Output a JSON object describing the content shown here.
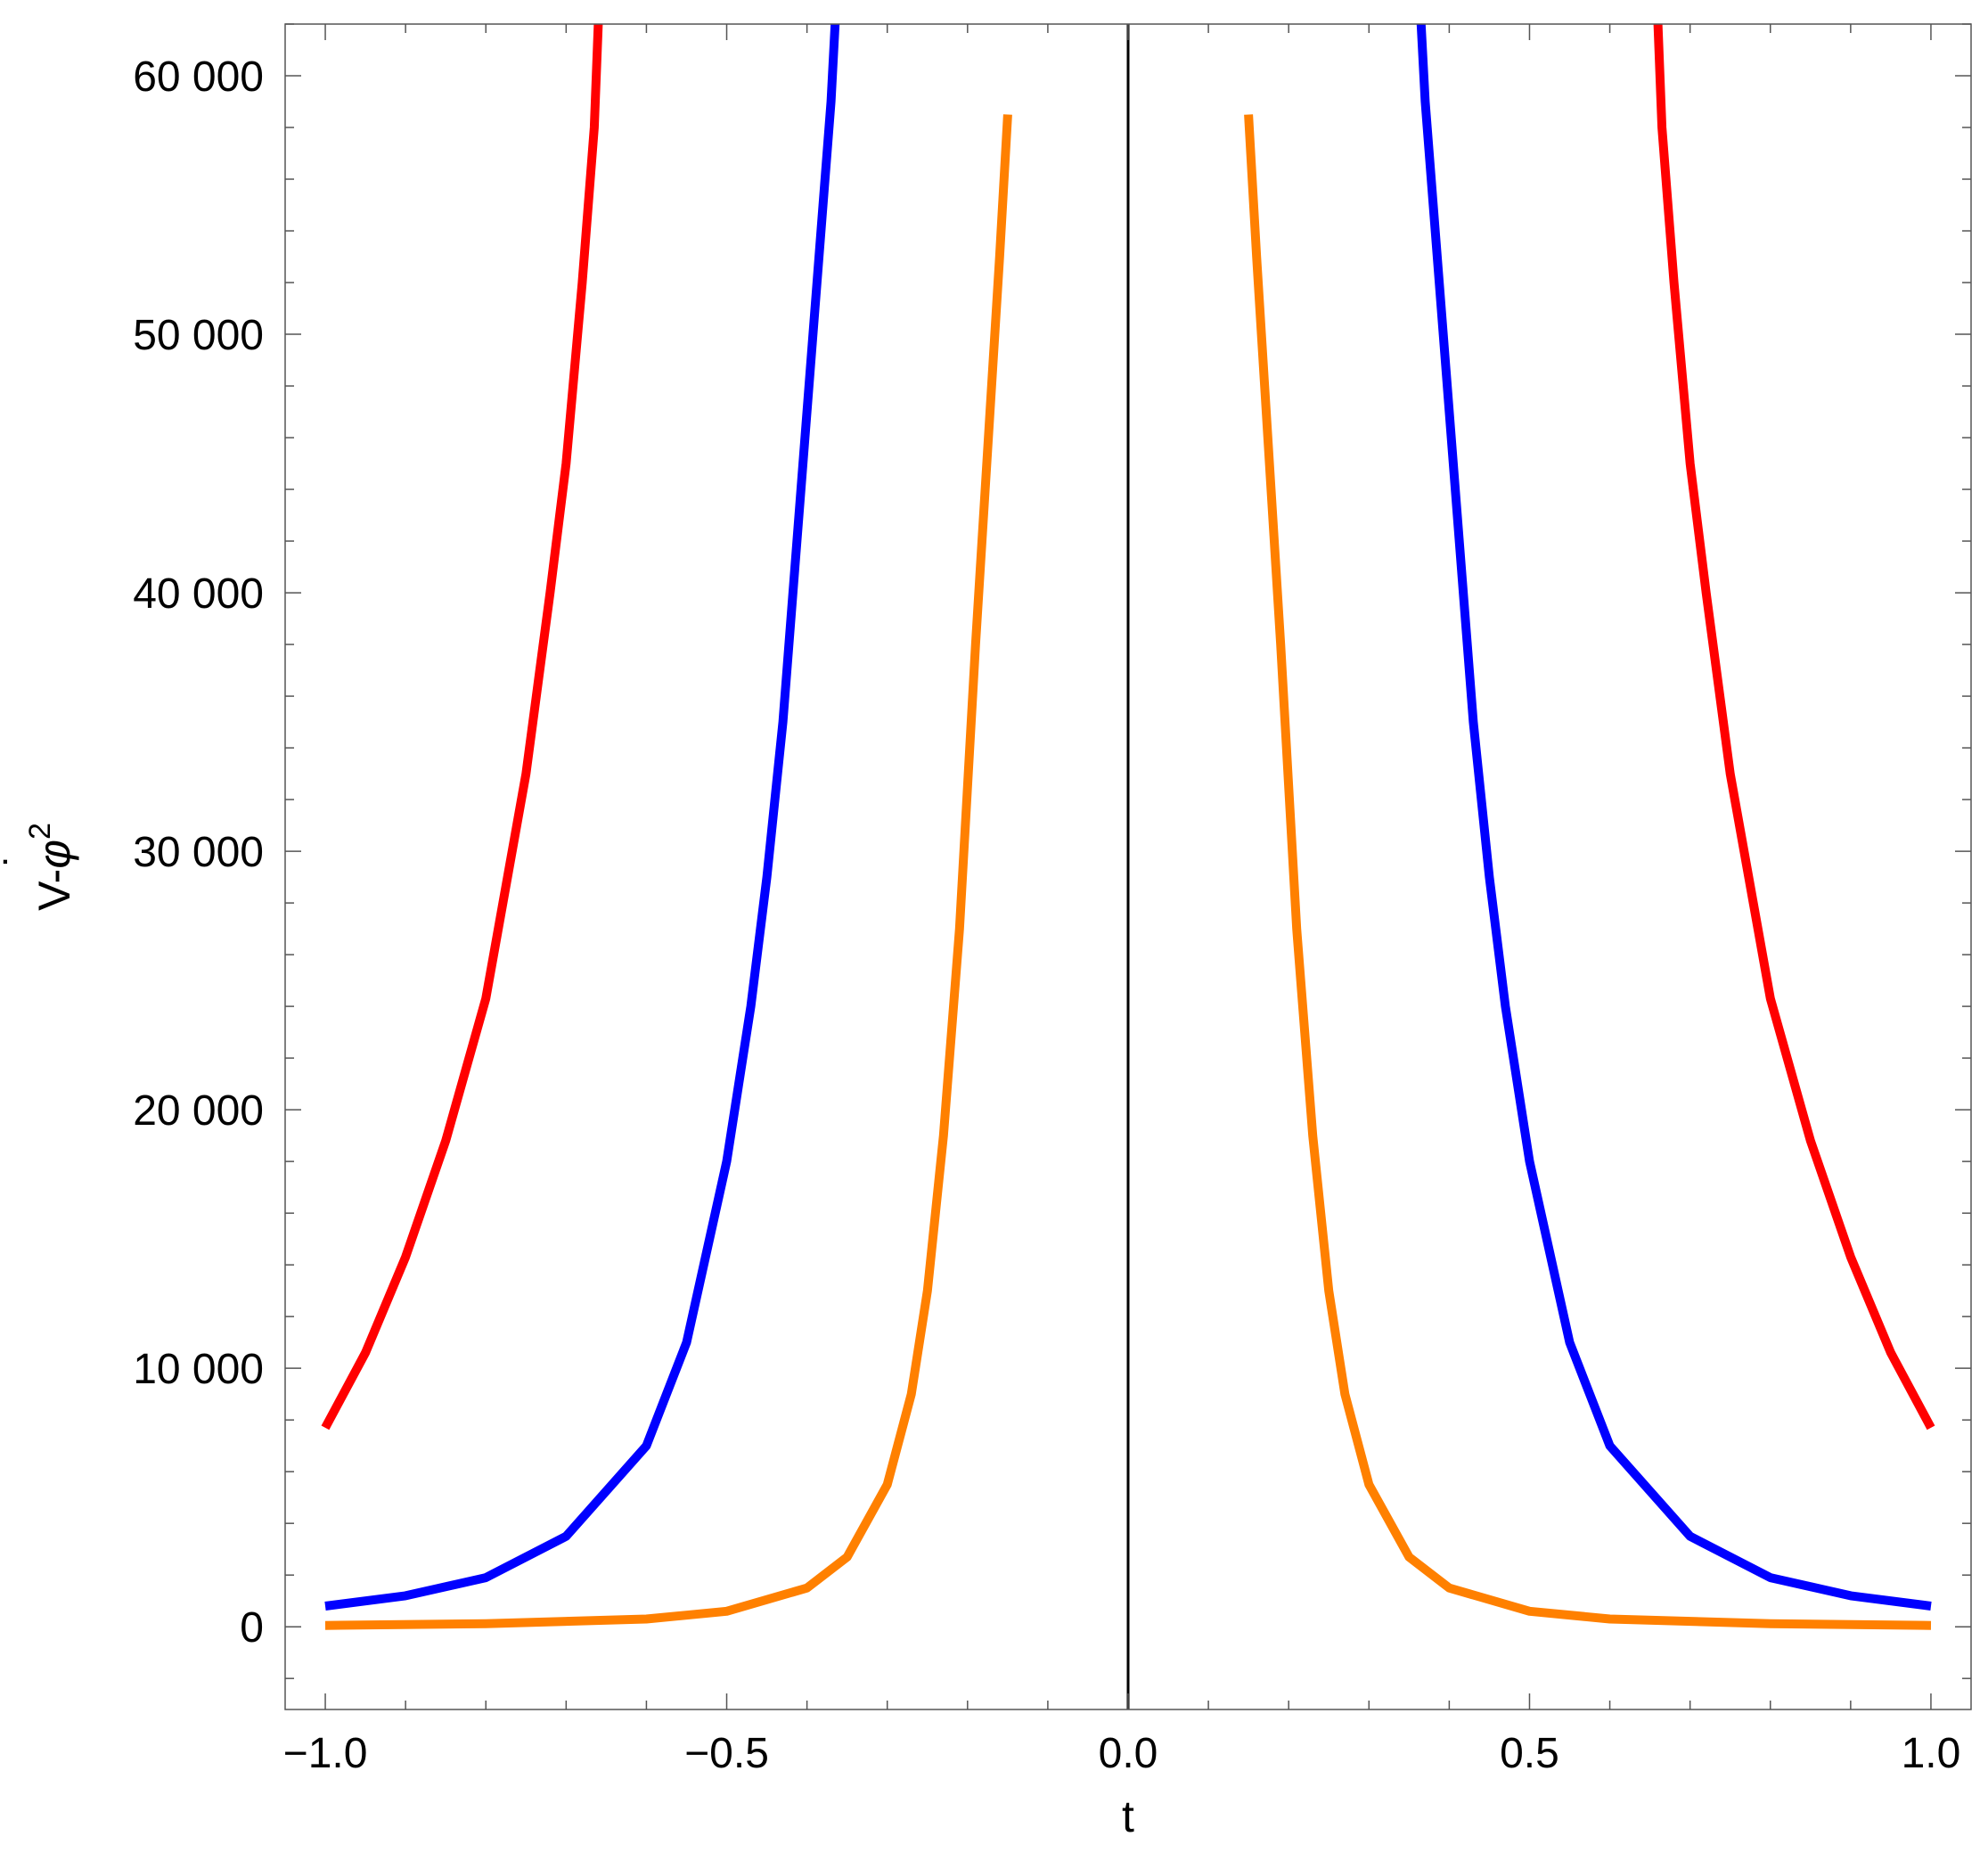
{
  "chart_data": {
    "type": "line",
    "xlabel": "t",
    "ylabel": {
      "base": "V-",
      "symbol": "φ",
      "dot": "˙",
      "exponent": "2"
    },
    "xlim": [
      -1.05,
      1.05
    ],
    "ylim": [
      -3200,
      62000
    ],
    "xticks": [
      -1.0,
      -0.5,
      0.0,
      0.5,
      1.0
    ],
    "xtick_labels": [
      "−1.0",
      "−0.5",
      "0.0",
      "0.5",
      "1.0"
    ],
    "yticks": [
      0,
      10000,
      20000,
      30000,
      40000,
      50000,
      60000
    ],
    "ytick_labels": [
      "0",
      "10 000",
      "20 000",
      "30 000",
      "40 000",
      "50 000",
      "60 000"
    ],
    "x_minor_step": 0.1,
    "y_minor_step": 2000,
    "grid": false,
    "legend": "none",
    "series": [
      {
        "color": "#ff0000",
        "x": [
          -1.0,
          -0.95,
          -0.9,
          -0.85,
          -0.8,
          -0.75,
          -0.72,
          -0.7,
          -0.68,
          -0.665,
          -0.66,
          0.66,
          0.665,
          0.68,
          0.7,
          0.72,
          0.75,
          0.8,
          0.85,
          0.9,
          0.95,
          1.0
        ],
        "y": [
          7700,
          10600,
          14300,
          18800,
          24300,
          33000,
          40000,
          45000,
          52000,
          58000,
          62000,
          62000,
          58000,
          52000,
          45000,
          40000,
          33000,
          24300,
          18800,
          14300,
          10600,
          7700
        ],
        "gaps_at_top": true
      },
      {
        "color": "#0000ff",
        "x": [
          -1.0,
          -0.9,
          -0.8,
          -0.7,
          -0.6,
          -0.55,
          -0.5,
          -0.47,
          -0.45,
          -0.43,
          -0.41,
          -0.39,
          -0.38,
          -0.37,
          -0.365,
          0.365,
          0.37,
          0.38,
          0.39,
          0.41,
          0.43,
          0.45,
          0.47,
          0.5,
          0.55,
          0.6,
          0.7,
          0.8,
          0.9,
          1.0
        ],
        "y": [
          800,
          1200,
          1900,
          3500,
          7000,
          11000,
          18000,
          24000,
          29000,
          35000,
          43000,
          51000,
          55000,
          59000,
          62000,
          62000,
          59000,
          55000,
          51000,
          43000,
          35000,
          29000,
          24000,
          18000,
          11000,
          7000,
          3500,
          1900,
          1200,
          800
        ]
      },
      {
        "color": "#ff8000",
        "x": [
          -1.0,
          -0.8,
          -0.6,
          -0.5,
          -0.4,
          -0.35,
          -0.3,
          -0.27,
          -0.25,
          -0.23,
          -0.21,
          -0.19,
          -0.17,
          -0.16,
          -0.15,
          0.15,
          0.16,
          0.17,
          0.19,
          0.21,
          0.23,
          0.25,
          0.27,
          0.3,
          0.35,
          0.4,
          0.5,
          0.6,
          0.8,
          1.0
        ],
        "y": [
          50,
          120,
          300,
          600,
          1500,
          2700,
          5500,
          9000,
          13000,
          19000,
          27000,
          38000,
          48000,
          53000,
          58500,
          58500,
          53000,
          48000,
          38000,
          27000,
          19000,
          13000,
          9000,
          5500,
          2700,
          1500,
          600,
          300,
          120,
          50
        ]
      }
    ]
  }
}
